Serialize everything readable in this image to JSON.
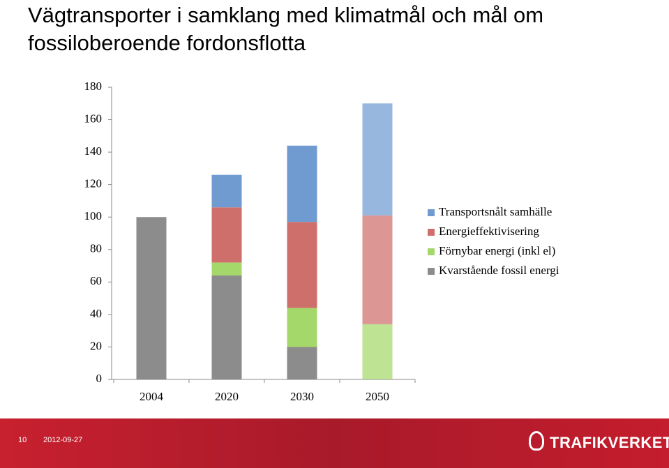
{
  "chart_data": {
    "type": "stacked_bar",
    "title": "Vägtransporter i samklang med klimatmål och mål om fossiloberoende fordonsflotta",
    "categories": [
      "2004",
      "2020",
      "2030",
      "2050"
    ],
    "series": [
      {
        "name": "Transportsnålt samhälle",
        "color": "#6f9bd1",
        "values": [
          0,
          20,
          47,
          69
        ]
      },
      {
        "name": "Energieffektivisering",
        "color": "#cf6f6c",
        "values": [
          0,
          34,
          53,
          67
        ]
      },
      {
        "name": "Förnybar energi (inkl el)",
        "color": "#a4d86a",
        "values": [
          0,
          8,
          24,
          34
        ]
      },
      {
        "name": "Kvarstående fossil energi",
        "color": "#8c8c8c",
        "values": [
          100,
          64,
          20,
          0
        ]
      }
    ],
    "ylim": [
      0,
      180
    ],
    "yticks": [
      0,
      20,
      40,
      60,
      80,
      100,
      120,
      140,
      160,
      180
    ],
    "grid": false
  },
  "footer": {
    "page": "10",
    "date": "2012-09-27",
    "logo": "TRAFIKVERKET"
  }
}
